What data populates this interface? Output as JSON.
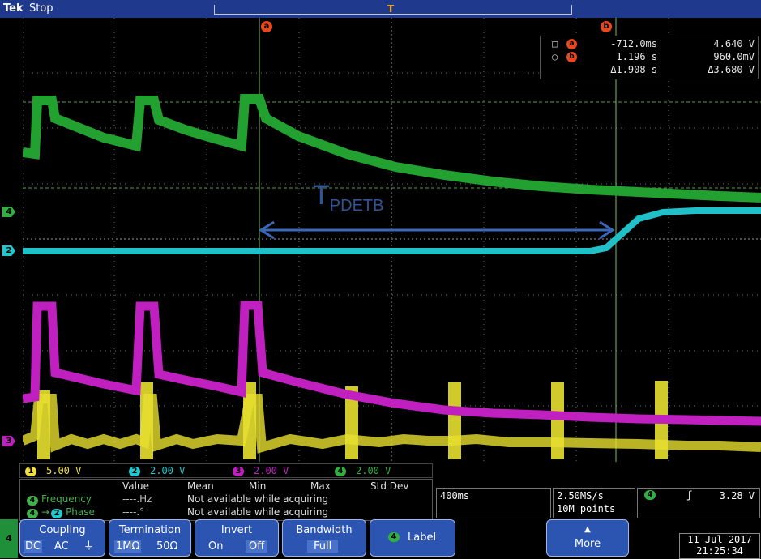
{
  "header": {
    "brand": "Tek",
    "state": "Stop"
  },
  "markers": {
    "a": "a",
    "b": "b"
  },
  "readout": {
    "a_time": "-712.0ms",
    "a_value": "4.640 V",
    "b_time": "1.196 s",
    "b_value": "960.0mV",
    "delta_time": "Δ1.908 s",
    "delta_value": "Δ3.680 V"
  },
  "annotation": {
    "main": "T",
    "sub": "PDETB"
  },
  "channels": [
    {
      "n": "1",
      "scale": "5.00 V",
      "color": "#f0e040"
    },
    {
      "n": "2",
      "scale": "2.00 V",
      "color": "#20c8d0"
    },
    {
      "n": "3",
      "scale": "2.00 V",
      "color": "#c020c0"
    },
    {
      "n": "4",
      "scale": "2.00 V",
      "color": "#30b040"
    }
  ],
  "badges": {
    "ch4": "4",
    "ch2": "2",
    "ch3": "3"
  },
  "measurements": {
    "headers": [
      "Value",
      "Mean",
      "Min",
      "Max",
      "Std Dev"
    ],
    "rows": [
      {
        "label": "Frequency",
        "value": "----.Hz",
        "status": "Not available while acquiring"
      },
      {
        "label": "Phase",
        "value": "----.°",
        "status": "Not available while acquiring"
      }
    ],
    "row1_channel": "4",
    "row2_from": "4",
    "row2_to": "2"
  },
  "horizontal": {
    "timebase": "400ms",
    "sample_rate": "2.50MS/s",
    "record": "10M points"
  },
  "trigger": {
    "source": "4",
    "slope": "ʃ",
    "level": "3.28 V"
  },
  "menu": {
    "side_channel": "4",
    "coupling": {
      "title": "Coupling",
      "options": [
        "DC",
        "AC",
        "⏚"
      ]
    },
    "termination": {
      "title": "Termination",
      "options": [
        "1MΩ",
        "50Ω"
      ]
    },
    "invert": {
      "title": "Invert",
      "options": [
        "On",
        "Off"
      ]
    },
    "bandwidth": {
      "title": "Bandwidth",
      "value": "Full"
    },
    "label": {
      "channel": "4",
      "text": "Label"
    },
    "more": {
      "text": "More"
    }
  },
  "datetime": {
    "date": "11 Jul 2017",
    "time": "21:25:34"
  }
}
